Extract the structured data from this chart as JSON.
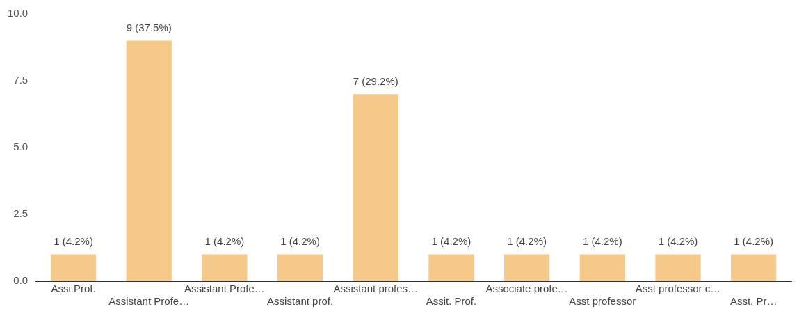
{
  "chart_data": {
    "type": "bar",
    "categories": [
      "Assi.Prof.",
      "Assistant Profe…",
      "Assistant Profe…",
      "Assistant prof.",
      "Assistant profes…",
      "Assit. Prof.",
      "Associate profe…",
      "Asst professor",
      "Asst professor c…",
      "Asst. Pr…"
    ],
    "values": [
      1,
      9,
      1,
      1,
      7,
      1,
      1,
      1,
      1,
      1
    ],
    "value_labels": [
      "1 (4.2%)",
      "9 (37.5%)",
      "1 (4.2%)",
      "1 (4.2%)",
      "7 (29.2%)",
      "1 (4.2%)",
      "1 (4.2%)",
      "1 (4.2%)",
      "1 (4.2%)",
      "1 (4.2%)"
    ],
    "color": "#f5c98a",
    "ylim": [
      0,
      10
    ],
    "yticks": [
      {
        "value": 0,
        "label": "0.0"
      },
      {
        "value": 2.5,
        "label": "2.5"
      },
      {
        "value": 5,
        "label": "5.0"
      },
      {
        "value": 7.5,
        "label": "7.5"
      },
      {
        "value": 10,
        "label": "10.0"
      }
    ],
    "grid": false,
    "legend": false
  }
}
